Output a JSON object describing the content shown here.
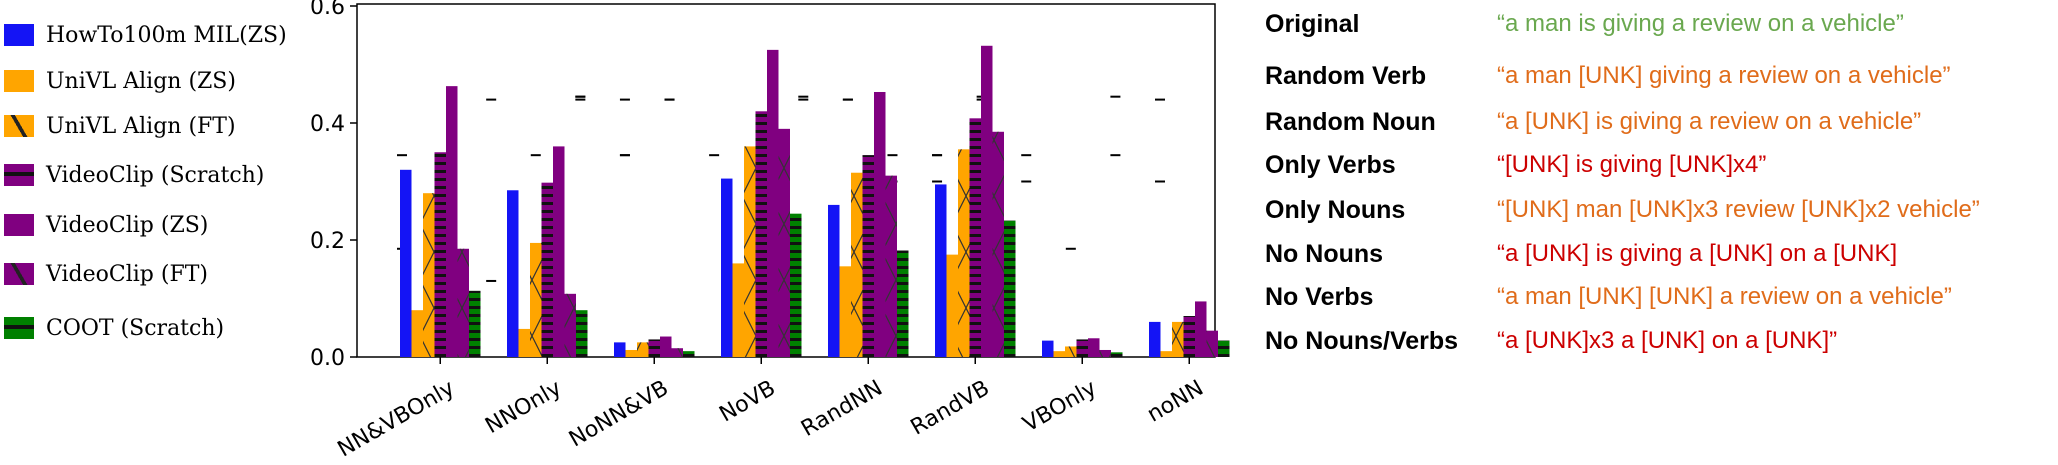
{
  "chart_data": {
    "type": "bar",
    "categories": [
      "NN&VBOnly",
      "NNOnly",
      "NoNN&VB",
      "NoVB",
      "RandNN",
      "RandVB",
      "VBOnly",
      "noNN"
    ],
    "ylim": [
      0,
      0.65
    ],
    "yticks": [
      0.0,
      0.2,
      0.4,
      0.6
    ],
    "ytick_labels": [
      "0.0",
      "0.2",
      "0.4",
      "0.6"
    ],
    "grid": false,
    "legend_position": "left, outside plot",
    "series": [
      {
        "name": "HowTo100m MIL(ZS)",
        "color": "#1414f5",
        "hatch": "none",
        "values": [
          0.32,
          0.285,
          0.025,
          0.305,
          0.26,
          0.295,
          0.028,
          0.06
        ]
      },
      {
        "name": "UniVL Align (ZS)",
        "color": "#ffa500",
        "hatch": "none",
        "values": [
          0.08,
          0.048,
          0.012,
          0.16,
          0.155,
          0.175,
          0.01,
          0.01
        ]
      },
      {
        "name": "UniVL Align (FT)",
        "color": "#ffa500",
        "hatch": "cross",
        "values": [
          0.28,
          0.195,
          0.025,
          0.36,
          0.315,
          0.355,
          0.018,
          0.06
        ]
      },
      {
        "name": "VideoClip (Scratch)",
        "color": "#800080",
        "hatch": "hline",
        "values": [
          0.35,
          0.298,
          0.03,
          0.42,
          0.345,
          0.408,
          0.03,
          0.07
        ]
      },
      {
        "name": "VideoClip (ZS)",
        "color": "#800080",
        "hatch": "none",
        "values": [
          0.463,
          0.36,
          0.035,
          0.525,
          0.453,
          0.532,
          0.032,
          0.095
        ]
      },
      {
        "name": "VideoClip (FT)",
        "color": "#800080",
        "hatch": "cross",
        "values": [
          0.185,
          0.108,
          0.015,
          0.39,
          0.31,
          0.385,
          0.012,
          0.045
        ]
      },
      {
        "name": "COOT (Scratch)",
        "color": "#008000",
        "hatch": "hline",
        "values": [
          0.113,
          0.08,
          0.01,
          0.245,
          0.182,
          0.233,
          0.008,
          0.028
        ]
      }
    ],
    "error_caps": [
      [
        0.345,
        0.185,
        0.0
      ],
      [
        0.345,
        0.3
      ],
      [
        0.13,
        0.44
      ],
      [
        0.345,
        0.0,
        0.0
      ],
      [
        0.628,
        0.445,
        0.445,
        0.44
      ],
      [
        0.628,
        0.345,
        0.345,
        0.44
      ],
      [
        0.625,
        0.44,
        0.44
      ],
      [
        0.628,
        0.345
      ],
      [
        0.3,
        0.0
      ],
      [
        0.628,
        0.445,
        0.44
      ],
      [
        0.628,
        0.44,
        0.44
      ],
      [
        0.628,
        0.345,
        0.3
      ],
      [
        0.628,
        0.345,
        0.345,
        0.3
      ],
      [
        0.628,
        0.445,
        0.44
      ],
      [
        0.628,
        0.345,
        0.3
      ],
      [
        0.185,
        0.0
      ],
      [
        0.628,
        0.445,
        0.345
      ],
      [
        0.628,
        0.44,
        0.3
      ]
    ]
  },
  "table": {
    "rows": [
      {
        "label": "Original",
        "quote": "“a man is giving a review on a vehicle”",
        "color": "#6aa84f"
      },
      {
        "label": "Random Verb",
        "quote": "“a man [UNK] giving a review on a vehicle”",
        "color": "#e06c1a"
      },
      {
        "label": "Random Noun",
        "quote": "“a [UNK] is giving a review on a vehicle”",
        "color": "#e06c1a"
      },
      {
        "label": "Only Verbs",
        "quote": "“[UNK] is giving [UNK]x4”",
        "color": "#cc0000"
      },
      {
        "label": "Only Nouns",
        "quote": "“[UNK] man [UNK]x3 review [UNK]x2 vehicle”",
        "color": "#e06c1a"
      },
      {
        "label": "No Nouns",
        "quote": "“a [UNK] is giving a [UNK] on a [UNK]",
        "color": "#cc0000"
      },
      {
        "label": "No Verbs",
        "quote": "“a man [UNK] [UNK] a review on a vehicle”",
        "color": "#e06c1a"
      },
      {
        "label": "No Nouns/Verbs",
        "quote": "“a [UNK]x3 a [UNK] on a [UNK]”",
        "color": "#cc0000"
      }
    ]
  }
}
